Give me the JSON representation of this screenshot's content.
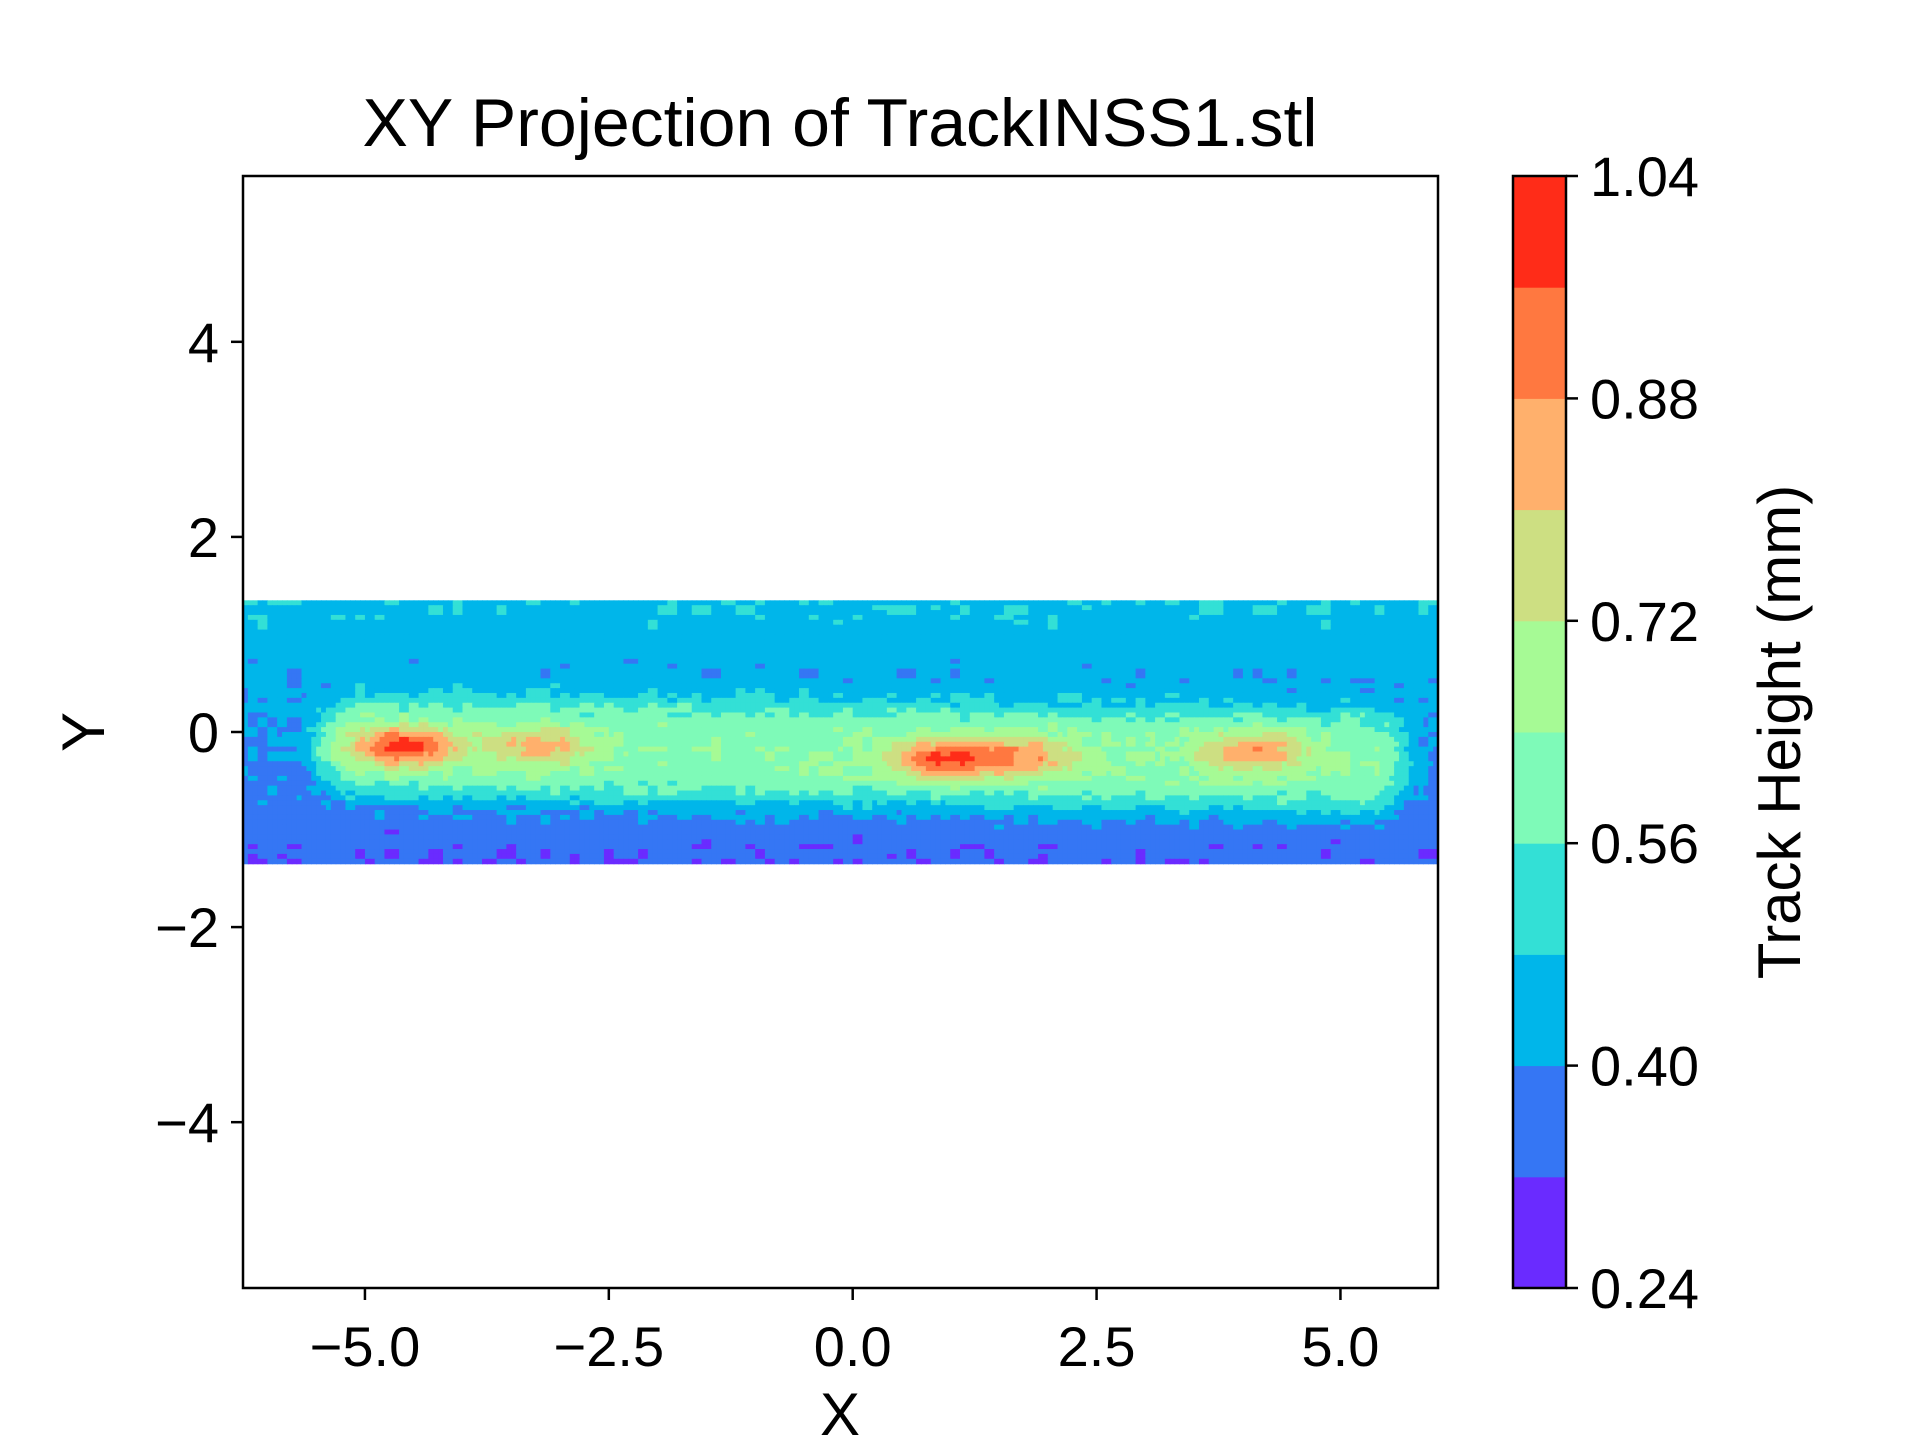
{
  "chart_data": {
    "type": "heatmap",
    "title": "XY Projection of TrackINSS1.stl",
    "xlabel": "X",
    "ylabel": "Y",
    "xlim": [
      -6.25,
      6.0
    ],
    "ylim": [
      -5.7,
      5.7
    ],
    "xticks": [
      -5.0,
      -2.5,
      0.0,
      2.5,
      5.0
    ],
    "xtick_labels": [
      "−5.0",
      "−2.5",
      "0.0",
      "2.5",
      "5.0"
    ],
    "yticks": [
      -4,
      -2,
      0,
      2,
      4
    ],
    "ytick_labels": [
      "−4",
      "−2",
      "0",
      "2",
      "4"
    ],
    "grid": false,
    "data_extent": {
      "x": [
        -6.25,
        6.0
      ],
      "y": [
        -1.35,
        1.35
      ]
    },
    "colorbar": {
      "label": "Track Height (mm)",
      "min": 0.24,
      "max": 1.04,
      "ticks": [
        0.24,
        0.4,
        0.56,
        0.72,
        0.88,
        1.04
      ],
      "tick_labels": [
        "0.24",
        "0.40",
        "0.56",
        "0.72",
        "0.88",
        "1.04"
      ],
      "levels": [
        0.24,
        0.32,
        0.4,
        0.48,
        0.56,
        0.64,
        0.72,
        0.8,
        0.88,
        0.96,
        1.04
      ],
      "colors": [
        "#6a2bff",
        "#3576f4",
        "#00b6ea",
        "#33e0d6",
        "#7efab8",
        "#a6fa95",
        "#cddf82",
        "#ffb06c",
        "#ff7840",
        "#ff2c18"
      ]
    },
    "field": {
      "background_level": 0.4,
      "ridge": {
        "x": [
          -5.0,
          5.2
        ],
        "y": [
          -0.15,
          -0.3
        ],
        "center_height": 0.62,
        "half_width": 0.55
      },
      "hotspots": [
        {
          "x": -4.6,
          "y": -0.15,
          "peak": 1.0
        },
        {
          "x": -3.2,
          "y": -0.15,
          "peak": 0.84
        },
        {
          "x": 0.95,
          "y": -0.28,
          "peak": 0.98
        },
        {
          "x": 1.8,
          "y": -0.25,
          "peak": 0.85
        },
        {
          "x": 4.1,
          "y": -0.2,
          "peak": 0.88
        }
      ]
    }
  }
}
